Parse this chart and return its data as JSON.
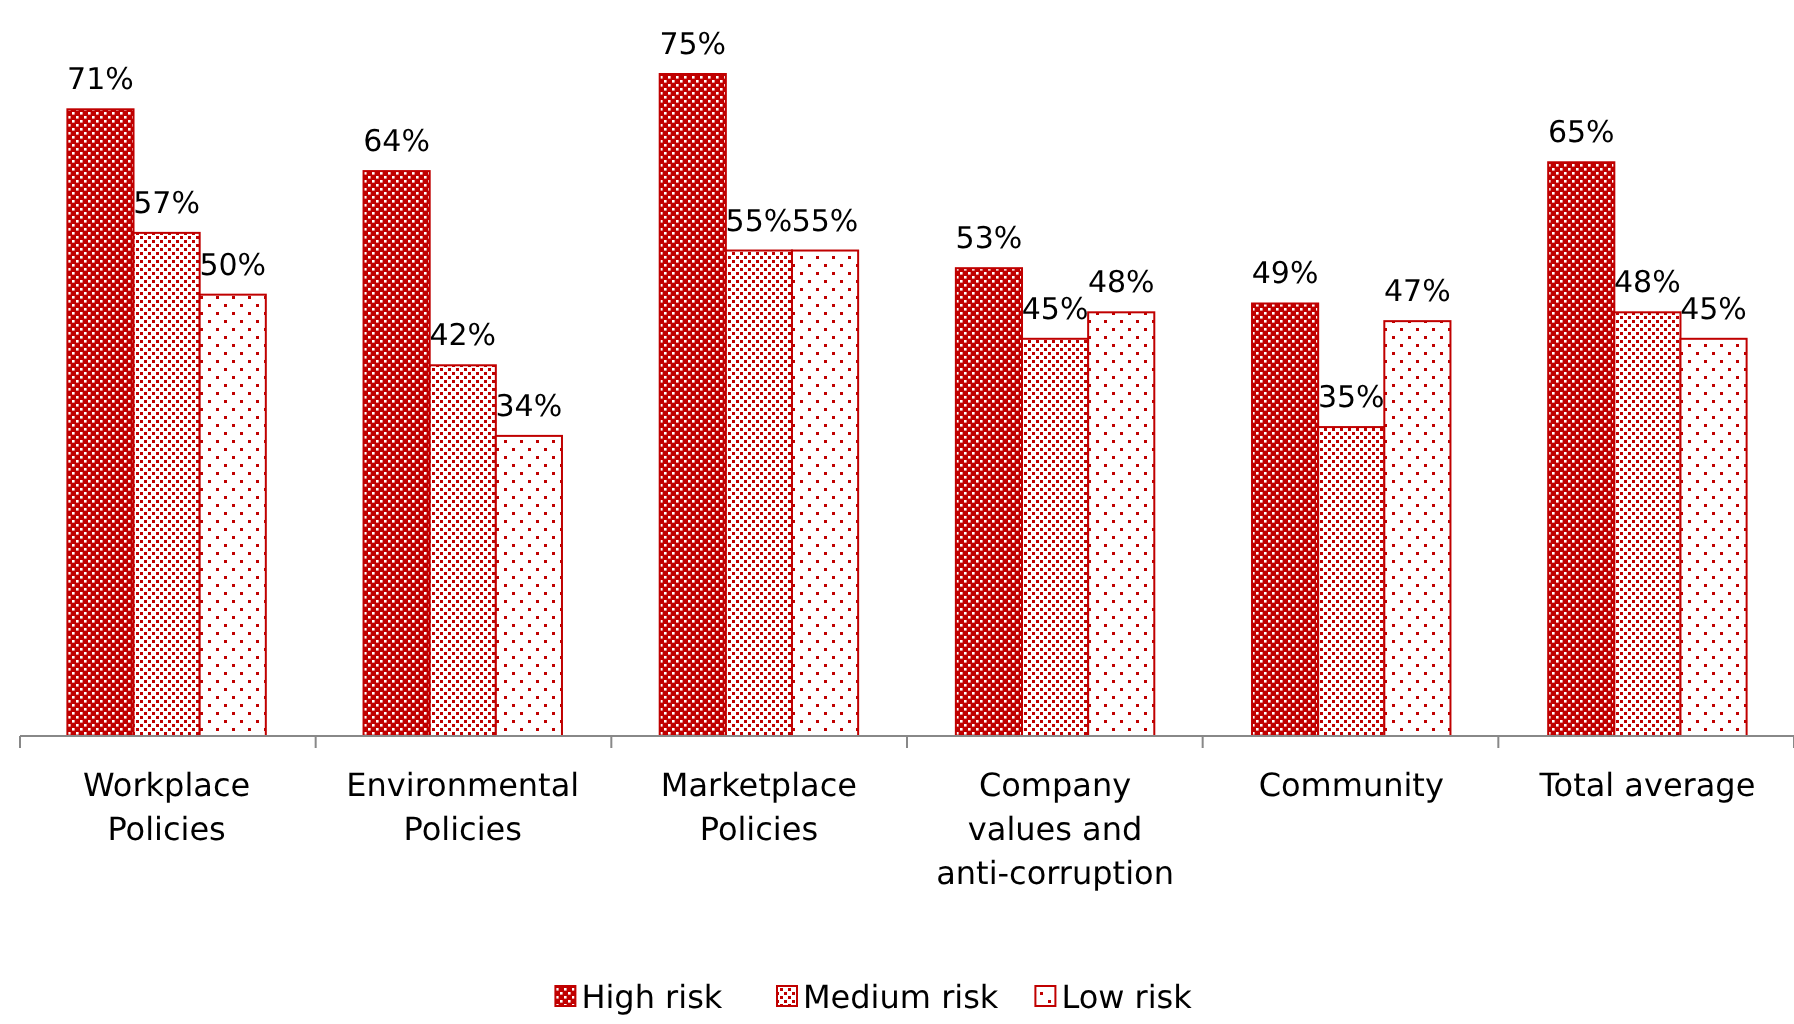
{
  "chart_data": {
    "type": "bar",
    "categories": [
      "Workplace Policies",
      "Environmental Policies",
      "Marketplace Policies",
      "Company values and anti-corruption",
      "Community",
      "Total average"
    ],
    "tick_labels": "x",
    "legend": "bottom",
    "series": [
      {
        "name": "High risk",
        "color": "#c00000",
        "values": [
          71,
          64,
          75,
          53,
          49,
          65
        ],
        "value_labels": [
          "71%",
          "64%",
          "75%",
          "53%",
          "49%",
          "65%"
        ]
      },
      {
        "name": "Medium risk",
        "color": "#c00000",
        "values": [
          57,
          42,
          55,
          45,
          35,
          48
        ],
        "value_labels": [
          "57%",
          "42%",
          "55%",
          "45%",
          "35%",
          "48%"
        ]
      },
      {
        "name": "Low risk",
        "color": "#c00000",
        "values": [
          50,
          34,
          55,
          48,
          47,
          45
        ],
        "value_labels": [
          "50%",
          "34%",
          "55%",
          "48%",
          "47%",
          "45%"
        ]
      }
    ]
  }
}
